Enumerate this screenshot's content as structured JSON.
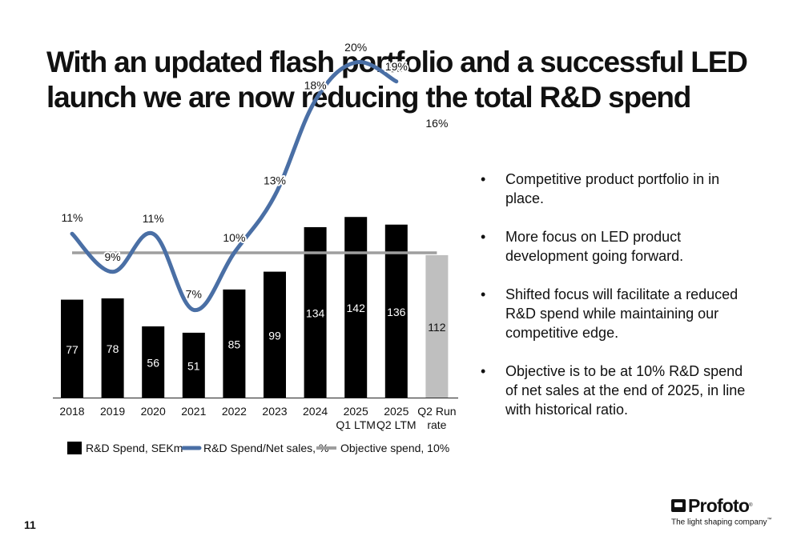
{
  "title": "With an updated flash portfolio and a successful LED launch we are now reducing the total R&D spend",
  "chart_data": {
    "type": "bar",
    "categories": [
      [
        "2018"
      ],
      [
        "2019"
      ],
      [
        "2020"
      ],
      [
        "2021"
      ],
      [
        "2022"
      ],
      [
        "2023"
      ],
      [
        "2024"
      ],
      [
        "2025",
        "Q1 LTM"
      ],
      [
        "2025",
        "Q2 LTM"
      ],
      [
        "Q2 Run",
        "rate"
      ]
    ],
    "series": [
      {
        "name": "R&D Spend, SEKm",
        "kind": "bar",
        "values": [
          77,
          78,
          56,
          51,
          85,
          99,
          134,
          142,
          136,
          112
        ],
        "labels": [
          "77",
          "78",
          "56",
          "51",
          "85",
          "99",
          "134",
          "142",
          "136",
          "112"
        ],
        "colors": [
          "#000000",
          "#000000",
          "#000000",
          "#000000",
          "#000000",
          "#000000",
          "#000000",
          "#000000",
          "#000000",
          "#bfbfbf"
        ],
        "label_colors": [
          "#ffffff",
          "#ffffff",
          "#ffffff",
          "#ffffff",
          "#ffffff",
          "#ffffff",
          "#ffffff",
          "#ffffff",
          "#ffffff",
          "#111111"
        ]
      },
      {
        "name": "R&D Spend/Net sales, %",
        "kind": "line",
        "color": "#4a6fa5",
        "values": [
          11,
          9,
          11,
          7,
          10,
          13,
          18,
          20,
          19,
          16
        ],
        "labels": [
          "11%",
          "9%",
          "11%",
          "7%",
          "10%",
          "13%",
          "18%",
          "20%",
          "19%",
          "16%"
        ],
        "points": 9
      },
      {
        "name": "Objective spend, 10%",
        "kind": "reference-line",
        "color": "#9e9e9e",
        "value": 10
      }
    ],
    "legend_position": "bottom-left",
    "grid": false
  },
  "bullets": [
    "Competitive product portfolio in in place.",
    "More focus on LED product development going forward.",
    "Shifted focus will facilitate a reduced R&D spend while maintaining our competitive edge.",
    "Objective is to be at 10% R&D spend of net sales at the end of 2025, in line with historical ratio."
  ],
  "bullet_marker": "•",
  "page_number": "11",
  "logo": {
    "brand": "Profoto",
    "tagline": "The light shaping company"
  }
}
